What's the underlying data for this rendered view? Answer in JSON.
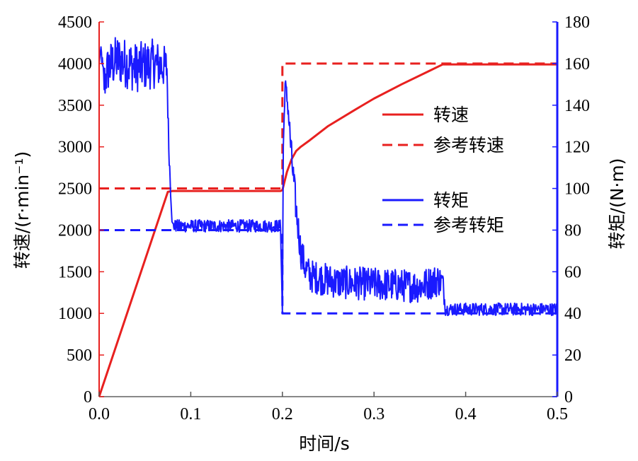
{
  "chart_data": {
    "type": "line",
    "xlabel": "时间/s",
    "ylabel_left": "转速/(r·min⁻¹)",
    "ylabel_right": "转矩/(N·m)",
    "xlim": [
      0,
      0.5
    ],
    "ylim_left": [
      0,
      4500
    ],
    "ylim_right": [
      0,
      180
    ],
    "x_ticks": [
      "0.0",
      "0.1",
      "0.2",
      "0.3",
      "0.4",
      "0.5"
    ],
    "y_left_ticks": [
      "0",
      "500",
      "1000",
      "1500",
      "2000",
      "2500",
      "3000",
      "3500",
      "4000",
      "4500"
    ],
    "y_right_ticks": [
      "0",
      "20",
      "40",
      "60",
      "80",
      "100",
      "120",
      "140",
      "160",
      "180"
    ],
    "grid": false,
    "legend_position": "right",
    "colors": {
      "speed": "#e8201f",
      "torque": "#1a1aff",
      "axis_left": "#e8201f",
      "axis_right": "#1a1aff"
    },
    "series": [
      {
        "name": "转速",
        "axis": "left",
        "style": "solid",
        "x": [
          0.0,
          0.075,
          0.08,
          0.198,
          0.2,
          0.205,
          0.21,
          0.215,
          0.22,
          0.23,
          0.25,
          0.28,
          0.3,
          0.33,
          0.36,
          0.375,
          0.4,
          0.5
        ],
        "y": [
          0,
          2460,
          2470,
          2470,
          2480,
          2700,
          2850,
          2950,
          3000,
          3080,
          3250,
          3450,
          3580,
          3750,
          3910,
          3990,
          3990,
          3990
        ]
      },
      {
        "name": "参考转速",
        "axis": "left",
        "style": "dashed",
        "x": [
          0.0,
          0.2,
          0.2,
          0.5
        ],
        "y": [
          2500,
          2500,
          4000,
          4000
        ]
      },
      {
        "name": "转矩",
        "axis": "right",
        "style": "solid",
        "x": [
          0.0,
          0.002,
          0.005,
          0.01,
          0.02,
          0.04,
          0.06,
          0.074,
          0.076,
          0.078,
          0.08,
          0.1,
          0.15,
          0.198,
          0.2,
          0.201,
          0.203,
          0.206,
          0.21,
          0.215,
          0.22,
          0.225,
          0.23,
          0.26,
          0.3,
          0.35,
          0.37,
          0.375,
          0.378,
          0.4,
          0.45,
          0.5
        ],
        "y": [
          160,
          168,
          150,
          158,
          162,
          158,
          160,
          158,
          120,
          100,
          82,
          82,
          82,
          82,
          40,
          120,
          150,
          140,
          115,
          90,
          70,
          62,
          58,
          55,
          54,
          53,
          56,
          55,
          42,
          42,
          42,
          42
        ],
        "noise_amplitude": [
          0,
          0,
          10,
          12,
          12,
          12,
          12,
          10,
          4,
          4,
          3,
          3,
          3,
          3,
          0,
          0,
          4,
          6,
          8,
          8,
          8,
          8,
          8,
          8,
          8,
          8,
          8,
          6,
          3,
          3,
          3,
          3
        ]
      },
      {
        "name": "参考转矩",
        "axis": "right",
        "style": "dashed",
        "x": [
          0.0,
          0.2,
          0.2,
          0.5
        ],
        "y": [
          80,
          80,
          40,
          40
        ]
      }
    ]
  }
}
